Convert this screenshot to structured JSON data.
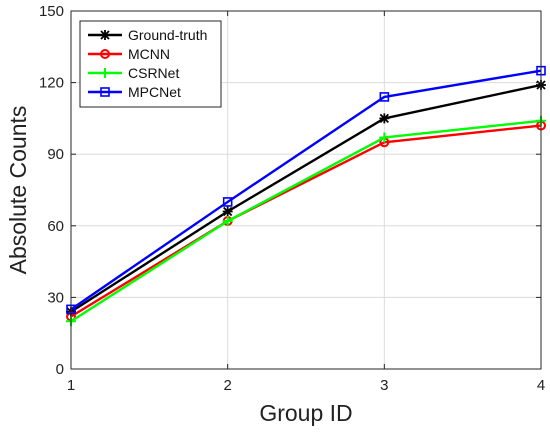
{
  "chart_data": {
    "type": "line",
    "title": "",
    "xlabel": "Group ID",
    "ylabel": "Absolute Counts",
    "x": [
      1,
      2,
      3,
      4
    ],
    "x_ticks": [
      "1",
      "2",
      "3",
      "4"
    ],
    "y_ticks": [
      "0",
      "30",
      "60",
      "90",
      "120",
      "150"
    ],
    "xlim": [
      1,
      4
    ],
    "ylim": [
      0,
      150
    ],
    "grid": true,
    "legend_position": "top-left",
    "series": [
      {
        "name": "Ground-truth",
        "values": [
          24,
          66,
          105,
          119
        ],
        "color": "#000000",
        "marker": "asterisk"
      },
      {
        "name": "MCNN",
        "values": [
          22,
          62,
          95,
          102
        ],
        "color": "#ff0000",
        "marker": "circle"
      },
      {
        "name": "CSRNet",
        "values": [
          20,
          62,
          97,
          104
        ],
        "color": "#00ff00",
        "marker": "plus"
      },
      {
        "name": "MPCNet",
        "values": [
          25,
          70,
          114,
          125
        ],
        "color": "#0000ff",
        "marker": "square"
      }
    ]
  }
}
